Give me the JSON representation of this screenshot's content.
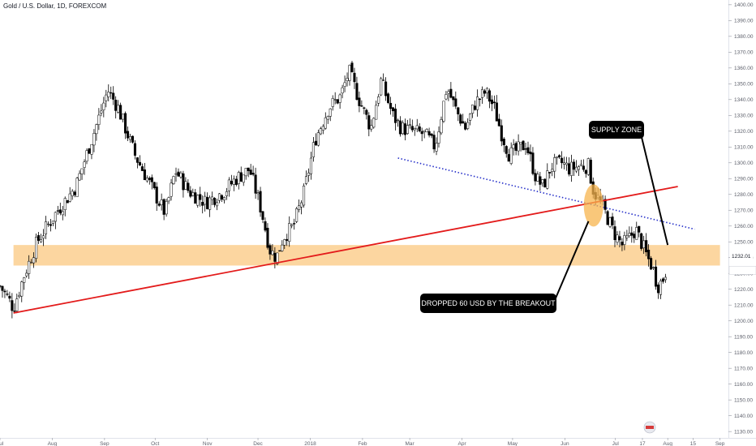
{
  "header": {
    "symbol": "Gold / U.S. Dollar, 1D, FOREXCOM"
  },
  "annotations": {
    "supply_zone": "SUPPLY ZONE",
    "dropped": "DROPPED 60 USD BY THE BREAKOUT"
  },
  "last_price_label": "1232.01",
  "colors": {
    "candle_up": "#ffffff",
    "candle_down": "#000000",
    "zone": "#fccf8f",
    "highlight": "#f7b44e",
    "trendline_red": "#e31b1b",
    "trendline_blue": "#2630c9",
    "axis_text": "#5d606b"
  },
  "chart_data": {
    "type": "candlestick",
    "title": "Gold / U.S. Dollar, 1D, FOREXCOM",
    "y_ticks": [
      1130,
      1140,
      1150,
      1160,
      1170,
      1180,
      1190,
      1200,
      1210,
      1220,
      1230,
      1240,
      1250,
      1260,
      1270,
      1280,
      1290,
      1300,
      1310,
      1320,
      1330,
      1340,
      1350,
      1360,
      1370,
      1380,
      1390,
      1400
    ],
    "ylim": [
      1127,
      1403
    ],
    "x_ticks": [
      "Jul",
      "Aug",
      "Sep",
      "Oct",
      "Nov",
      "Dec",
      "2018",
      "Feb",
      "Mar",
      "Apr",
      "May",
      "Jun",
      "Jul",
      "17",
      "Aug",
      "15",
      "Sep"
    ],
    "x_tick_days": [
      0,
      31,
      62,
      92,
      123,
      153,
      184,
      215,
      243,
      274,
      304,
      335,
      365,
      381,
      396,
      411,
      427
    ],
    "xlim_days": [
      0,
      432
    ],
    "last_price": 1232.01,
    "path_anchors": [
      {
        "day": 0,
        "price": 1222
      },
      {
        "day": 5,
        "price": 1214
      },
      {
        "day": 8,
        "price": 1208
      },
      {
        "day": 14,
        "price": 1228
      },
      {
        "day": 22,
        "price": 1250
      },
      {
        "day": 33,
        "price": 1268
      },
      {
        "day": 45,
        "price": 1285
      },
      {
        "day": 56,
        "price": 1320
      },
      {
        "day": 64,
        "price": 1346
      },
      {
        "day": 70,
        "price": 1335
      },
      {
        "day": 80,
        "price": 1305
      },
      {
        "day": 93,
        "price": 1278
      },
      {
        "day": 98,
        "price": 1268
      },
      {
        "day": 104,
        "price": 1295
      },
      {
        "day": 112,
        "price": 1282
      },
      {
        "day": 122,
        "price": 1275
      },
      {
        "day": 133,
        "price": 1282
      },
      {
        "day": 140,
        "price": 1290
      },
      {
        "day": 148,
        "price": 1296
      },
      {
        "day": 155,
        "price": 1270
      },
      {
        "day": 160,
        "price": 1245
      },
      {
        "day": 164,
        "price": 1240
      },
      {
        "day": 168,
        "price": 1253
      },
      {
        "day": 174,
        "price": 1260
      },
      {
        "day": 180,
        "price": 1280
      },
      {
        "day": 187,
        "price": 1315
      },
      {
        "day": 195,
        "price": 1335
      },
      {
        "day": 202,
        "price": 1342
      },
      {
        "day": 207,
        "price": 1358
      },
      {
        "day": 213,
        "price": 1340
      },
      {
        "day": 220,
        "price": 1322
      },
      {
        "day": 226,
        "price": 1352
      },
      {
        "day": 233,
        "price": 1330
      },
      {
        "day": 238,
        "price": 1322
      },
      {
        "day": 245,
        "price": 1320
      },
      {
        "day": 252,
        "price": 1318
      },
      {
        "day": 258,
        "price": 1310
      },
      {
        "day": 265,
        "price": 1348
      },
      {
        "day": 271,
        "price": 1332
      },
      {
        "day": 276,
        "price": 1322
      },
      {
        "day": 282,
        "price": 1338
      },
      {
        "day": 288,
        "price": 1345
      },
      {
        "day": 293,
        "price": 1335
      },
      {
        "day": 297,
        "price": 1320
      },
      {
        "day": 302,
        "price": 1305
      },
      {
        "day": 307,
        "price": 1308
      },
      {
        "day": 312,
        "price": 1312
      },
      {
        "day": 318,
        "price": 1290
      },
      {
        "day": 322,
        "price": 1285
      },
      {
        "day": 327,
        "price": 1298
      },
      {
        "day": 333,
        "price": 1300
      },
      {
        "day": 338,
        "price": 1296
      },
      {
        "day": 344,
        "price": 1298
      },
      {
        "day": 349,
        "price": 1298
      },
      {
        "day": 352,
        "price": 1282
      },
      {
        "day": 356,
        "price": 1275
      },
      {
        "day": 360,
        "price": 1266
      },
      {
        "day": 364,
        "price": 1256
      },
      {
        "day": 369,
        "price": 1248
      },
      {
        "day": 373,
        "price": 1252
      },
      {
        "day": 377,
        "price": 1258
      },
      {
        "day": 381,
        "price": 1248
      },
      {
        "day": 384,
        "price": 1240
      },
      {
        "day": 387,
        "price": 1234
      },
      {
        "day": 390,
        "price": 1222
      },
      {
        "day": 393,
        "price": 1226
      },
      {
        "day": 395,
        "price": 1232
      }
    ],
    "supply_zone": {
      "low": 1235,
      "high": 1248,
      "start_day": 8,
      "end_day": 427
    },
    "trendlines": [
      {
        "name": "red",
        "start": {
          "day": 8,
          "price": 1205
        },
        "end": {
          "day": 402,
          "price": 1285
        }
      },
      {
        "name": "blue-dotted",
        "start": {
          "day": 236,
          "price": 1303
        },
        "end": {
          "day": 412,
          "price": 1258
        }
      }
    ],
    "highlight": {
      "day": 352,
      "price": 1273
    },
    "callouts": [
      {
        "text_key": "supply_zone",
        "anchor": {
          "day": 396,
          "price": 1248
        }
      },
      {
        "text_key": "dropped",
        "anchor": {
          "day": 349,
          "price": 1263
        }
      }
    ]
  }
}
